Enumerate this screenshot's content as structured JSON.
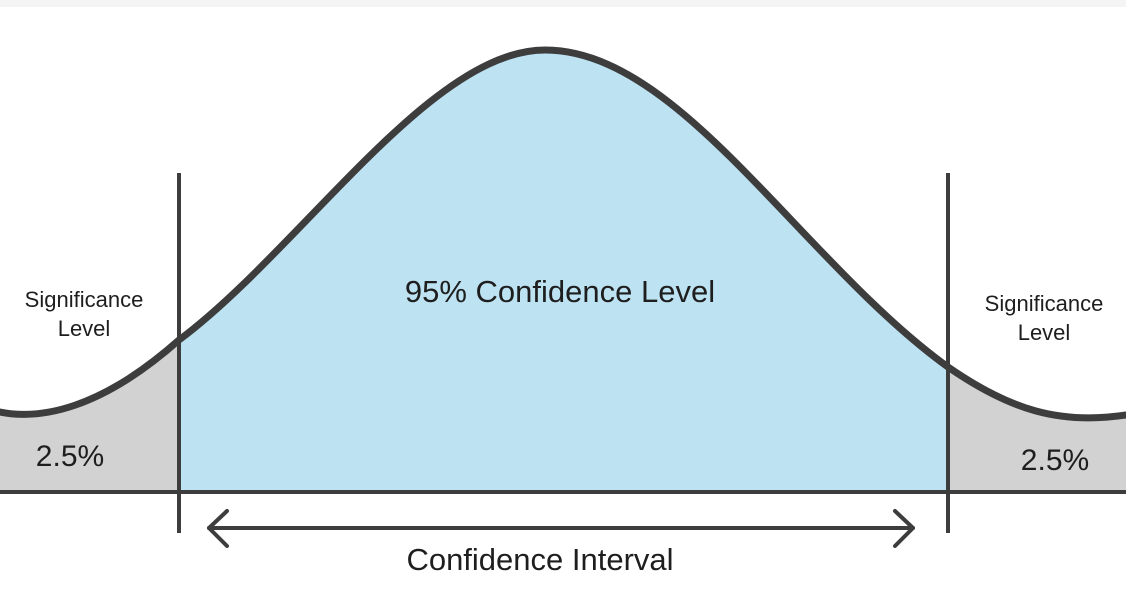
{
  "colors": {
    "confidence_fill": "#bde2f2",
    "tail_fill": "#d2d2d2",
    "line": "#3d3d3d"
  },
  "left_tail": {
    "title": "Significance\nLevel",
    "title_line1": "Significance",
    "title_line2": "Level",
    "value": "2.5%"
  },
  "right_tail": {
    "title_line1": "Significance",
    "title_line2": "Level",
    "value": "2.5%"
  },
  "center": {
    "label": "95% Confidence Level"
  },
  "interval": {
    "label": "Confidence Interval"
  }
}
